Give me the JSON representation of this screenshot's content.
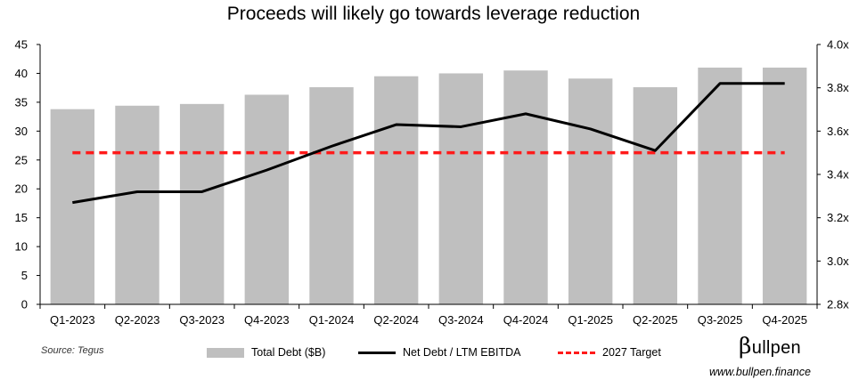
{
  "chart_data": {
    "type": "bar+line",
    "title": "Proceeds will likely go towards leverage reduction",
    "categories": [
      "Q1-2023",
      "Q2-2023",
      "Q3-2023",
      "Q4-2023",
      "Q1-2024",
      "Q2-2024",
      "Q3-2024",
      "Q4-2024",
      "Q1-2025",
      "Q2-2025",
      "Q3-2025",
      "Q4-2025"
    ],
    "series": [
      {
        "name": "Total Debt ($B)",
        "type": "bar",
        "axis": "left",
        "color": "#bfbfbf",
        "values": [
          33.8,
          34.4,
          34.7,
          36.3,
          37.6,
          39.5,
          40.0,
          40.5,
          39.1,
          37.6,
          41.0,
          41.0
        ]
      },
      {
        "name": "Net Debt / LTM EBITDA",
        "type": "line",
        "axis": "right",
        "color": "#000000",
        "values": [
          3.27,
          3.32,
          3.32,
          3.42,
          3.53,
          3.63,
          3.62,
          3.68,
          3.61,
          3.51,
          3.82,
          3.82
        ]
      },
      {
        "name": "2027 Target",
        "type": "dashed-line",
        "axis": "right",
        "color": "#ff1a1a",
        "values": [
          3.5,
          3.5,
          3.5,
          3.5,
          3.5,
          3.5,
          3.5,
          3.5,
          3.5,
          3.5,
          3.5,
          3.5
        ]
      }
    ],
    "y_left": {
      "min": 0,
      "max": 45,
      "step": 5,
      "tick_labels": [
        "0",
        "5",
        "10",
        "15",
        "20",
        "25",
        "30",
        "35",
        "40",
        "45"
      ]
    },
    "y_right": {
      "min": 2.8,
      "max": 4.0,
      "step": 0.2,
      "tick_labels": [
        "2.8x",
        "3.0x",
        "3.2x",
        "3.4x",
        "3.6x",
        "3.8x",
        "4.0x"
      ]
    },
    "legend_position": "bottom",
    "grid": false
  },
  "footer": {
    "source": "Source: Tegus",
    "brand_beta": "β",
    "brand_rest": "ullpen",
    "url": "www.bullpen.finance"
  }
}
